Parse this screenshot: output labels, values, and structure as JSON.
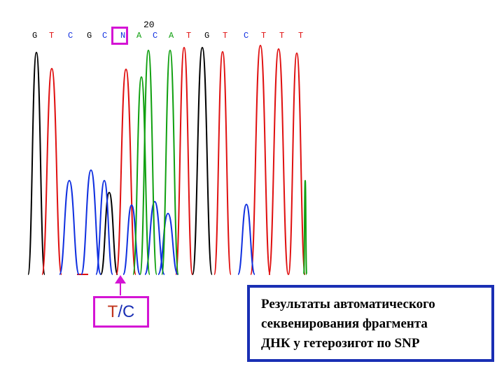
{
  "position_label": "20",
  "bases": [
    {
      "letter": "G",
      "color": "#000000"
    },
    {
      "letter": "T",
      "color": "#e01010"
    },
    {
      "letter": "C",
      "color": "#1030e0"
    },
    {
      "letter": "G",
      "color": "#000000"
    },
    {
      "letter": "C",
      "color": "#1030e0"
    },
    {
      "letter": "N",
      "color": "#1030e0"
    },
    {
      "letter": "A",
      "color": "#10a010"
    },
    {
      "letter": "C",
      "color": "#1030e0"
    },
    {
      "letter": "A",
      "color": "#10a010"
    },
    {
      "letter": "T",
      "color": "#e01010"
    },
    {
      "letter": "G",
      "color": "#000000"
    },
    {
      "letter": "T",
      "color": "#e01010"
    },
    {
      "letter": "C",
      "color": "#1030e0"
    },
    {
      "letter": "T",
      "color": "#e01010"
    },
    {
      "letter": "T",
      "color": "#e01010"
    },
    {
      "letter": "T",
      "color": "#e01010"
    }
  ],
  "snp_label": {
    "t": "T",
    "sep": "/",
    "c": "C"
  },
  "caption": {
    "line1": "Результаты автоматического",
    "line2": "секвенирования фрагмента",
    "line3": "ДНК у гетерозигот по SNP"
  },
  "colors": {
    "trace_a": "#10a010",
    "trace_c": "#1030e0",
    "trace_g": "#000000",
    "trace_t": "#e01010",
    "highlight": "#d414d4",
    "caption_border": "#1a2fb4"
  }
}
